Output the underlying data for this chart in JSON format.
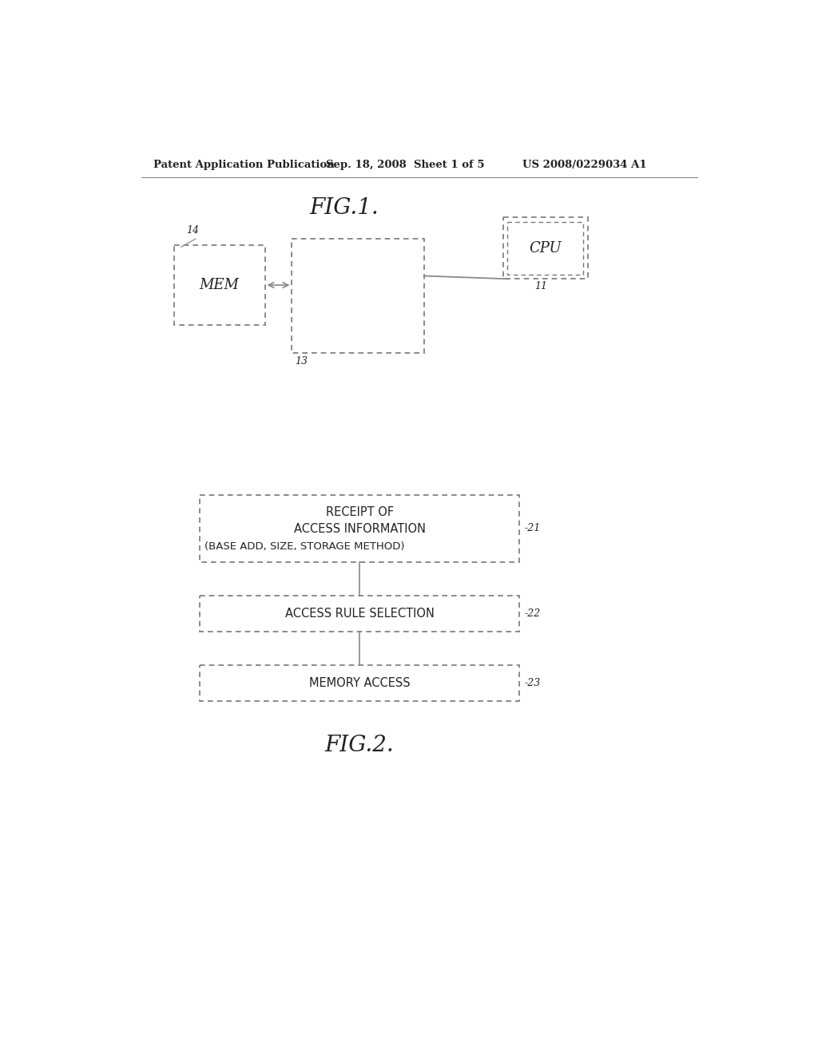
{
  "bg_color": "#ffffff",
  "header_left": "Patent Application Publication",
  "header_mid": "Sep. 18, 2008  Sheet 1 of 5",
  "header_right": "US 2008/0229034 A1",
  "header_fontsize": 9.5,
  "fig1_title": "FIG.1.",
  "fig2_title": "FIG.2.",
  "mem_label": "MEM",
  "cpu_label": "CPU",
  "label_14": "14",
  "label_13": "13",
  "label_11": "11",
  "box1_text_line1": "RECEIPT OF",
  "box1_text_line2": "ACCESS INFORMATION",
  "box1_text_line3": "(BASE ADD, SIZE, STORAGE METHOD)",
  "label_21": "-21",
  "box2_text": "ACCESS RULE SELECTION",
  "label_22": "-22",
  "box3_text": "MEMORY ACCESS",
  "label_23": "-23",
  "edge_color": "#777777",
  "text_color": "#222222",
  "line_color": "#888888"
}
